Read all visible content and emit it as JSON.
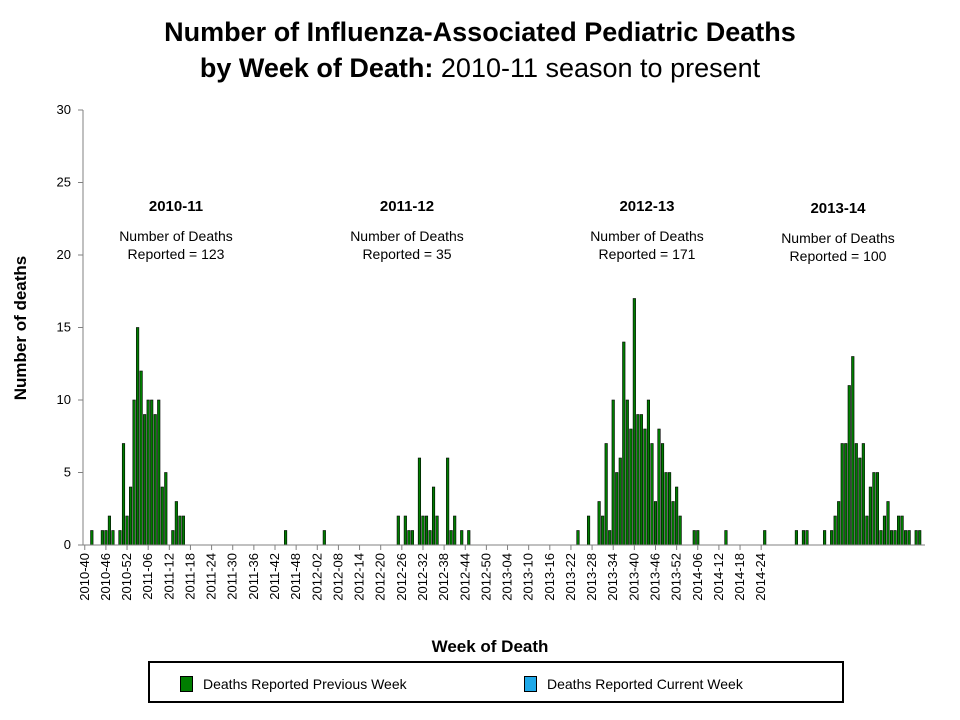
{
  "title": {
    "line1": "Number of Influenza-Associated Pediatric Deaths",
    "line2_bold": "by Week of Death:",
    "line2_rest": " 2010-11 season to present"
  },
  "seasons": [
    {
      "name": "2010-11",
      "line1": "Number of Deaths",
      "line2": "Reported = 123"
    },
    {
      "name": "2011-12",
      "line1": "Number of Deaths",
      "line2": "Reported = 35"
    },
    {
      "name": "2012-13",
      "line1": "Number of Deaths",
      "line2": "Reported = 171"
    },
    {
      "name": "2013-14",
      "line1": "Number of Deaths",
      "line2": "Reported = 100"
    }
  ],
  "legend": {
    "previous": "Deaths Reported Previous Week",
    "current": "Deaths Reported Current Week"
  },
  "colors": {
    "previous": "#007d00",
    "current": "#1ea8e8"
  },
  "chart_data": {
    "type": "bar",
    "title": "Number of Influenza-Associated Pediatric Deaths by Week of Death: 2010-11 season to present",
    "xlabel": "Week of Death",
    "ylabel": "Number of deaths",
    "ylim": [
      0,
      30
    ],
    "yticks": [
      0,
      5,
      10,
      15,
      20,
      25,
      30
    ],
    "x_tick_labels": [
      "2010-40",
      "2010-46",
      "2010-52",
      "2011-06",
      "2011-12",
      "2011-18",
      "2011-24",
      "2011-30",
      "2011-36",
      "2011-42",
      "2011-48",
      "2012-02",
      "2012-08",
      "2012-14",
      "2012-20",
      "2012-26",
      "2012-32",
      "2012-38",
      "2012-44",
      "2012-50",
      "2013-04",
      "2013-10",
      "2013-16",
      "2013-22",
      "2013-28",
      "2013-34",
      "2013-40",
      "2013-46",
      "2013-52",
      "2014-06",
      "2014-12",
      "2014-18",
      "2014-24"
    ],
    "x_tick_step_weeks": 6,
    "start_week": "2010-40",
    "series": [
      {
        "name": "Deaths Reported Previous Week",
        "values": [
          0,
          0,
          1,
          0,
          0,
          1,
          1,
          2,
          1,
          0,
          1,
          7,
          2,
          4,
          10,
          15,
          12,
          9,
          10,
          10,
          9,
          10,
          4,
          5,
          0,
          1,
          3,
          2,
          2,
          0,
          0,
          0,
          0,
          0,
          0,
          0,
          0,
          0,
          0,
          0,
          0,
          0,
          0,
          0,
          0,
          0,
          0,
          0,
          0,
          0,
          0,
          0,
          0,
          0,
          0,
          0,
          0,
          1,
          0,
          0,
          0,
          0,
          0,
          0,
          0,
          0,
          0,
          0,
          1,
          0,
          0,
          0,
          0,
          0,
          0,
          0,
          0,
          0,
          0,
          0,
          0,
          0,
          0,
          0,
          0,
          0,
          0,
          0,
          0,
          2,
          0,
          2,
          1,
          1,
          0,
          6,
          2,
          2,
          1,
          4,
          2,
          0,
          0,
          6,
          1,
          2,
          0,
          1,
          0,
          1,
          0,
          0,
          0,
          0,
          0,
          0,
          0,
          0,
          0,
          0,
          0,
          0,
          0,
          0,
          0,
          0,
          0,
          0,
          0,
          0,
          0,
          0,
          0,
          0,
          0,
          0,
          0,
          0,
          0,
          0,
          1,
          0,
          0,
          2,
          0,
          0,
          3,
          2,
          7,
          1,
          10,
          5,
          6,
          14,
          10,
          8,
          17,
          9,
          9,
          8,
          10,
          7,
          3,
          8,
          7,
          5,
          5,
          3,
          4,
          2,
          0,
          0,
          0,
          1,
          1,
          0,
          0,
          0,
          0,
          0,
          0,
          0,
          1,
          0,
          0,
          0,
          0,
          0,
          0,
          0,
          0,
          0,
          0,
          1,
          0,
          0,
          0,
          0,
          0,
          0,
          0,
          0,
          1,
          0,
          1,
          1,
          0,
          0,
          0,
          0,
          1,
          0,
          1,
          2,
          3,
          7,
          7,
          11,
          13,
          7,
          6,
          7,
          2,
          4,
          5,
          5,
          1,
          2,
          3,
          1,
          1,
          2,
          2,
          1,
          1,
          0,
          1,
          1,
          0
        ]
      },
      {
        "name": "Deaths Reported Current Week",
        "values": [
          0,
          0,
          0,
          0,
          0,
          0,
          0,
          0,
          0,
          0,
          0,
          0,
          0,
          0,
          0,
          0,
          0,
          0,
          0,
          0,
          0,
          0,
          0,
          0,
          0,
          0,
          0,
          0,
          0,
          0,
          0,
          0,
          0,
          0,
          0,
          0,
          0,
          0,
          0,
          0,
          0,
          0,
          0,
          0,
          0,
          0,
          0,
          0,
          0,
          0,
          0,
          0,
          0,
          0,
          0,
          0,
          0,
          0,
          0,
          0,
          0,
          0,
          0,
          0,
          0,
          0,
          0,
          0,
          0,
          0,
          0,
          0,
          0,
          0,
          0,
          0,
          0,
          0,
          0,
          0,
          0,
          0,
          0,
          0,
          0,
          0,
          0,
          0,
          0,
          0,
          0,
          0,
          0,
          0,
          0,
          0,
          0,
          0,
          0,
          0,
          0,
          0,
          0,
          0,
          0,
          0,
          0,
          0,
          0,
          0,
          0,
          0,
          0,
          0,
          0,
          0,
          0,
          0,
          0,
          0,
          0,
          0,
          0,
          0,
          0,
          0,
          0,
          0,
          0,
          0,
          0,
          0,
          0,
          0,
          0,
          0,
          0,
          0,
          0,
          0,
          0,
          0,
          0,
          0,
          0,
          0,
          0,
          0,
          0,
          0,
          0,
          0,
          0,
          0,
          0,
          0,
          0,
          0,
          0,
          0,
          0,
          0,
          0,
          0,
          0,
          0,
          0,
          0,
          0,
          0,
          0,
          0,
          0,
          0,
          0,
          0,
          0,
          0,
          0,
          0,
          0,
          0,
          0,
          0,
          0,
          0,
          0,
          0,
          0,
          0,
          0,
          0,
          0,
          0,
          0,
          0,
          0,
          0,
          0,
          0,
          0,
          0,
          0,
          0,
          0,
          0,
          0,
          0,
          0,
          0,
          0,
          0,
          0,
          0,
          0,
          0,
          0,
          0,
          0,
          0,
          0,
          0,
          0,
          0,
          0,
          0,
          0,
          0,
          0,
          0,
          0,
          0,
          0,
          0,
          0,
          0,
          0,
          0,
          0,
          0,
          0,
          0,
          1
        ]
      }
    ],
    "grid": false,
    "legend_position": "bottom"
  }
}
